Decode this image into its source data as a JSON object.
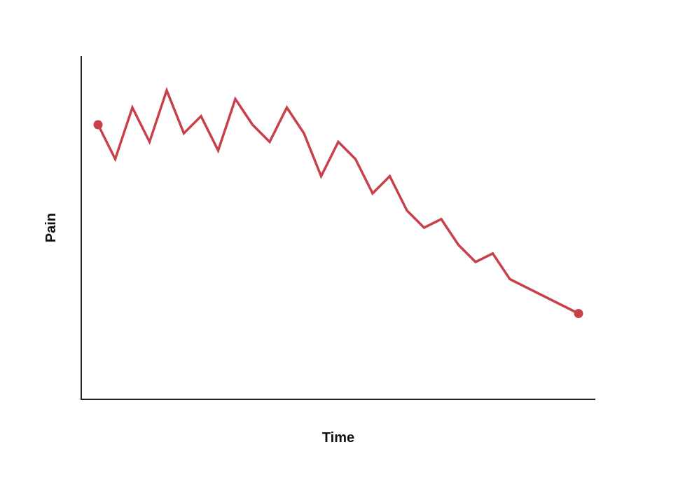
{
  "chart_data": {
    "type": "line",
    "title": "",
    "xlabel": "Time",
    "ylabel": "Pain",
    "x_ticks_shown": false,
    "y_ticks_shown": false,
    "grid": false,
    "xlim": [
      0,
      30
    ],
    "ylim": [
      0,
      10
    ],
    "series": [
      {
        "color": "#c8404a",
        "endpoint_markers": true,
        "x": [
          1,
          2,
          3,
          4,
          5,
          6,
          7,
          8,
          9,
          10,
          11,
          12,
          13,
          14,
          15,
          16,
          17,
          18,
          19,
          20,
          21,
          22,
          23,
          24,
          25,
          26,
          27,
          28,
          29
        ],
        "y": [
          8.0,
          7.0,
          8.5,
          7.5,
          9.0,
          7.75,
          8.25,
          7.25,
          8.75,
          8.0,
          7.5,
          8.5,
          7.75,
          6.5,
          7.5,
          7.0,
          6.0,
          6.5,
          5.5,
          5.0,
          5.25,
          4.5,
          4.0,
          4.25,
          3.5,
          null,
          null,
          null,
          2.5
        ]
      }
    ]
  }
}
